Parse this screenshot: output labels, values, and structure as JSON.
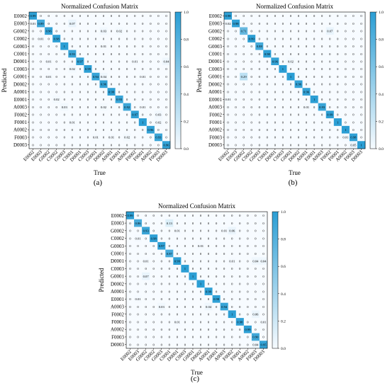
{
  "figure": {
    "panel_labels": [
      "(a)",
      "(b)",
      "(c)"
    ]
  },
  "chart_data": [
    {
      "type": "heatmap",
      "panel": "(a)",
      "title": "Normalized Confusion Matrix",
      "xlabel": "True",
      "ylabel": "Predicted",
      "labels": [
        "E0002",
        "E0003",
        "G0002",
        "C0002",
        "G0003",
        "C0001",
        "D0001",
        "C0003",
        "G0001",
        "D0002",
        "A0001",
        "E0001",
        "A0003",
        "F0002",
        "F0001",
        "A0002",
        "F0003",
        "D0003"
      ],
      "colorbar": {
        "min": 0.0,
        "max": 1.0,
        "ticks": [
          "0.0",
          "0.2",
          "0.4",
          "0.6",
          "0.8",
          "1.0"
        ]
      },
      "color_low": "#f7fbff",
      "color_high": "#2b9ed4",
      "matrix": [
        [
          "0.99",
          "0",
          "0",
          "0",
          "0",
          "0",
          "0",
          "0",
          "0",
          "0",
          "0",
          "0",
          "0",
          "0",
          "0",
          "0",
          "0",
          "0"
        ],
        [
          "0.01",
          "0.89",
          "0",
          "0",
          "0",
          "0.07",
          "0",
          "0",
          "0",
          "0",
          "0",
          "0",
          "0",
          "0",
          "0",
          "0",
          "0",
          "0"
        ],
        [
          "0",
          "0",
          "0.96",
          "0",
          "0",
          "0",
          "0",
          "0",
          "0",
          "0.03",
          "0",
          "0.02",
          "0",
          "0",
          "0",
          "0",
          "0",
          "0"
        ],
        [
          "0",
          "0.01",
          "0",
          "0.98",
          "0",
          "0",
          "0",
          "0",
          "0",
          "0",
          "0",
          "0",
          "0",
          "0",
          "0",
          "0",
          "0",
          "0"
        ],
        [
          "0",
          "0",
          "0",
          "0",
          "1",
          "0",
          "0",
          "0",
          "0",
          "0.01",
          "0",
          "0",
          "0",
          "0",
          "0",
          "0",
          "0",
          "0"
        ],
        [
          "0",
          "0",
          "0",
          "0",
          "0",
          "0.93",
          "0",
          "0",
          "0",
          "0",
          "0",
          "0",
          "0",
          "0",
          "0",
          "0",
          "0",
          "0"
        ],
        [
          "0",
          "0",
          "0.01",
          "0",
          "0",
          "0",
          "0.97",
          "0",
          "0",
          "0",
          "0",
          "0",
          "0",
          "0.01",
          "0",
          "0",
          "0",
          "0.04"
        ],
        [
          "0",
          "0",
          "0",
          "0",
          "0",
          "0.02",
          "0",
          "0.99",
          "0",
          "0",
          "0",
          "0",
          "0",
          "0",
          "0",
          "0",
          "0",
          "0"
        ],
        [
          "0",
          "0",
          "0.01",
          "0",
          "0",
          "0",
          "0",
          "0",
          "0.94",
          "0.04",
          "0",
          "0",
          "0",
          "0",
          "0.01",
          "0",
          "0",
          "0"
        ],
        [
          "0",
          "0",
          "0",
          "0",
          "0",
          "0",
          "0",
          "0",
          "0",
          "0.96",
          "0",
          "0",
          "0",
          "0",
          "0",
          "0",
          "0",
          "0"
        ],
        [
          "0",
          "0",
          "0",
          "0",
          "0",
          "0",
          "0",
          "0",
          "0",
          "0",
          "0.99",
          "0",
          "0",
          "0",
          "0",
          "0",
          "0",
          "0"
        ],
        [
          "0",
          "0",
          "0",
          "0.02",
          "0",
          "0",
          "0",
          "0",
          "0",
          "0",
          "0",
          "0.93",
          "0",
          "0",
          "0",
          "0",
          "0",
          "0"
        ],
        [
          "0",
          "0",
          "0",
          "0",
          "0.03",
          "0",
          "0",
          "0",
          "0",
          "0.02",
          "0",
          "0",
          "0.92",
          "0",
          "0.01",
          "0",
          "0",
          "0"
        ],
        [
          "0",
          "0",
          "0",
          "0",
          "0",
          "0",
          "0",
          "0",
          "0",
          "0",
          "0",
          "0",
          "0",
          "0.97",
          "0",
          "0",
          "0.03",
          "0"
        ],
        [
          "0",
          "0",
          "0",
          "0",
          "0",
          "0.01",
          "0",
          "0",
          "0",
          "0",
          "0",
          "0",
          "0",
          "0",
          "1",
          "0",
          "0.02",
          "0"
        ],
        [
          "0",
          "0",
          "0",
          "0",
          "0",
          "0",
          "0",
          "0",
          "0",
          "0",
          "0",
          "0",
          "0",
          "0",
          "0",
          "0.96",
          "0",
          "0"
        ],
        [
          "0",
          "0",
          "0",
          "0",
          "0",
          "0",
          "0",
          "0",
          "0.01",
          "0",
          "0.01",
          "0",
          "0.02",
          "0",
          "0",
          "0",
          "0.93",
          "0"
        ],
        [
          "0",
          "0",
          "0",
          "0",
          "0",
          "0",
          "0",
          "0",
          "0",
          "0",
          "0",
          "0",
          "0",
          "0",
          "0",
          "0",
          "0",
          "0.96"
        ]
      ]
    },
    {
      "type": "heatmap",
      "panel": "(b)",
      "title": "Normalized Confusion Matrix",
      "xlabel": "True",
      "ylabel": "Predicted",
      "labels": [
        "E0002",
        "E0003",
        "G0002",
        "C0002",
        "G0003",
        "C0001",
        "D0001",
        "C0003",
        "G0001",
        "D0002",
        "A0001",
        "E0001",
        "A0003",
        "F0002",
        "F0001",
        "A0002",
        "F0003",
        "D0003"
      ],
      "colorbar": {
        "min": 0.0,
        "max": 1.0,
        "ticks": [
          "0.0",
          "0.2",
          "0.4",
          "0.6",
          "0.8",
          "1.0"
        ]
      },
      "color_low": "#f7fbff",
      "color_high": "#2b9ed4",
      "matrix": [
        [
          "0.98",
          "0",
          "0",
          "0",
          "0",
          "0",
          "0",
          "0",
          "0",
          "0",
          "0",
          "0",
          "0",
          "0",
          "0",
          "0",
          "0",
          "0"
        ],
        [
          "0.02",
          "0.98",
          "0",
          "0",
          "0",
          "0",
          "0",
          "0",
          "0",
          "0",
          "0",
          "0",
          "0",
          "0",
          "0",
          "0",
          "0",
          "0"
        ],
        [
          "0",
          "0",
          "0.71",
          "0",
          "0",
          "0",
          "0",
          "0",
          "0",
          "0",
          "0",
          "0",
          "0",
          "0.07",
          "0",
          "0",
          "0",
          "0"
        ],
        [
          "0",
          "0",
          "0",
          "0.99",
          "0",
          "0",
          "0",
          "0",
          "0",
          "0",
          "0",
          "0",
          "0",
          "0",
          "0",
          "0",
          "0",
          "0"
        ],
        [
          "0",
          "0",
          "0",
          "0",
          "0.88",
          "0",
          "0",
          "0",
          "0",
          "0",
          "0",
          "0",
          "0",
          "0",
          "0",
          "0",
          "0",
          "0"
        ],
        [
          "0",
          "0",
          "0",
          "0",
          "0",
          "0.98",
          "0",
          "0",
          "0",
          "0",
          "0",
          "0",
          "0",
          "0",
          "0",
          "0",
          "0",
          "0"
        ],
        [
          "0",
          "0",
          "0",
          "0",
          "0",
          "0",
          "0.96",
          "0",
          "0.02",
          "0",
          "0",
          "0",
          "0",
          "0",
          "0",
          "0",
          "0",
          "0"
        ],
        [
          "0",
          "0",
          "0",
          "0",
          "0",
          "0",
          "0",
          "1",
          "0",
          "0",
          "0",
          "0",
          "0",
          "0",
          "0",
          "0",
          "0",
          "0"
        ],
        [
          "0",
          "0",
          "0.29",
          "0",
          "0",
          "0",
          "0",
          "0",
          "1",
          "0",
          "0",
          "0",
          "0",
          "0",
          "0",
          "0",
          "0",
          "0"
        ],
        [
          "0",
          "0",
          "0",
          "0",
          "0",
          "0",
          "0",
          "0",
          "0",
          "0.96",
          "0",
          "0",
          "0",
          "0",
          "0",
          "0",
          "0",
          "0"
        ],
        [
          "0",
          "0",
          "0",
          "0",
          "0",
          "0",
          "0",
          "0",
          "0",
          "0",
          "0.96",
          "0",
          "0",
          "0",
          "0",
          "0",
          "0",
          "0"
        ],
        [
          "0.01",
          "0",
          "0",
          "0",
          "0",
          "0",
          "0",
          "0",
          "0",
          "0",
          "0",
          "1",
          "0",
          "0",
          "0",
          "0",
          "0",
          "0"
        ],
        [
          "0",
          "0",
          "0",
          "0",
          "0",
          "0",
          "0",
          "0",
          "0",
          "0",
          "0.01",
          "0",
          "0.93",
          "0",
          "0",
          "0",
          "0",
          "0"
        ],
        [
          "0",
          "0",
          "0",
          "0",
          "0",
          "0",
          "0",
          "0",
          "0",
          "0",
          "0",
          "0",
          "0",
          "0.99",
          "0",
          "0",
          "0",
          "0"
        ],
        [
          "0",
          "0",
          "0",
          "0",
          "0",
          "0",
          "0",
          "0",
          "0",
          "0",
          "0",
          "0",
          "0",
          "0",
          "1",
          "0",
          "0",
          "0"
        ],
        [
          "0",
          "0",
          "0",
          "0",
          "0",
          "0",
          "0",
          "0",
          "0",
          "0",
          "0",
          "0",
          "0",
          "0",
          "0",
          "1",
          "0",
          "0"
        ],
        [
          "0",
          "0",
          "0",
          "0",
          "0",
          "0",
          "0",
          "0",
          "0",
          "0",
          "0",
          "0",
          "0",
          "0",
          "0",
          "0.01",
          "0.98",
          "0"
        ],
        [
          "0",
          "0",
          "0",
          "0",
          "0",
          "0",
          "0",
          "0",
          "0",
          "0",
          "0",
          "0",
          "0",
          "0",
          "0",
          "0",
          "0.05",
          "1"
        ]
      ]
    },
    {
      "type": "heatmap",
      "panel": "(c)",
      "title": "Normalized Confusion Matrix",
      "xlabel": "True",
      "ylabel": "Predicted",
      "labels": [
        "E0002",
        "E0003",
        "G0002",
        "C0002",
        "G0003",
        "C0001",
        "D0001",
        "C0003",
        "G0001",
        "D0002",
        "A0001",
        "E0001",
        "A0003",
        "F0002",
        "F0001",
        "A0002",
        "F0003",
        "D0003"
      ],
      "colorbar": {
        "min": 0.0,
        "max": 1.0,
        "ticks": [
          "0.0",
          "0.2",
          "0.4",
          "0.6",
          "0.8",
          "1.0"
        ]
      },
      "color_low": "#f7fbff",
      "color_high": "#2b9ed4",
      "matrix": [
        [
          "0.99",
          "0",
          "0",
          "0",
          "0",
          "0",
          "0",
          "0",
          "0",
          "0",
          "0",
          "0",
          "0",
          "0",
          "0",
          "0",
          "0",
          "0"
        ],
        [
          "0",
          "0.86",
          "0",
          "0",
          "0",
          "0.13",
          "0",
          "0",
          "0",
          "0",
          "0",
          "0",
          "0",
          "0",
          "0",
          "0",
          "0",
          "0"
        ],
        [
          "0",
          "0",
          "0.93",
          "0",
          "0",
          "0",
          "0.01",
          "0",
          "0",
          "0",
          "0",
          "0",
          "0.01",
          "0.06",
          "0",
          "0",
          "0",
          "0"
        ],
        [
          "0",
          "0.01",
          "0",
          "0.98",
          "0",
          "0",
          "0",
          "0",
          "0",
          "0",
          "0",
          "0",
          "0",
          "0",
          "0",
          "0",
          "0",
          "0"
        ],
        [
          "0",
          "0",
          "0",
          "0",
          "0.97",
          "0",
          "0",
          "0",
          "0",
          "0.01",
          "0",
          "0",
          "0",
          "0",
          "0",
          "0",
          "0",
          "0"
        ],
        [
          "0",
          "0",
          "0",
          "0",
          "0",
          "0.87",
          "0",
          "0",
          "0",
          "0",
          "0",
          "0",
          "0",
          "0",
          "0",
          "0",
          "0",
          "0"
        ],
        [
          "0",
          "0",
          "0.01",
          "0",
          "0",
          "0",
          "0.99",
          "0",
          "0",
          "0",
          "0",
          "0",
          "0",
          "0.01",
          "0",
          "0",
          "0.04",
          "0.04"
        ],
        [
          "0",
          "0",
          "0",
          "0",
          "0",
          "0",
          "0",
          "1",
          "0",
          "0",
          "0",
          "0",
          "0",
          "0",
          "0",
          "0",
          "0",
          "0"
        ],
        [
          "0",
          "0",
          "0.07",
          "0",
          "0",
          "0",
          "0",
          "0",
          "1",
          "0",
          "0",
          "0",
          "0",
          "0",
          "0",
          "0",
          "0",
          "0"
        ],
        [
          "0",
          "0",
          "0",
          "0",
          "0",
          "0",
          "0",
          "0",
          "0",
          "1",
          "0",
          "0",
          "0",
          "0",
          "0",
          "0",
          "0",
          "0"
        ],
        [
          "0",
          "0",
          "0",
          "0",
          "0",
          "0",
          "0",
          "0",
          "0",
          "0",
          "0.99",
          "0",
          "0",
          "0",
          "0",
          "0",
          "0",
          "0"
        ],
        [
          "0",
          "0.01",
          "0",
          "0",
          "0",
          "0",
          "0",
          "0",
          "0",
          "0",
          "0",
          "0.98",
          "0",
          "0",
          "0",
          "0",
          "0",
          "0"
        ],
        [
          "0",
          "0",
          "0",
          "0",
          "0.03",
          "0",
          "0",
          "0",
          "0",
          "0",
          "0.04",
          "0",
          "0.94",
          "0",
          "0",
          "0",
          "0",
          "0"
        ],
        [
          "0",
          "0",
          "0",
          "0",
          "0",
          "0",
          "0",
          "0",
          "0",
          "0",
          "0",
          "0",
          "0",
          "1",
          "0",
          "0",
          "0.06",
          "0"
        ],
        [
          "0",
          "0",
          "0",
          "0",
          "0",
          "0",
          "0.01",
          "0",
          "0",
          "0",
          "0",
          "0",
          "0",
          "0",
          "0.98",
          "0",
          "0",
          "0.01"
        ],
        [
          "0",
          "0",
          "0",
          "0",
          "0",
          "0",
          "0",
          "0",
          "0",
          "0",
          "0",
          "0",
          "0",
          "0",
          "0",
          "0.99",
          "0",
          "0"
        ],
        [
          "0",
          "0",
          "0",
          "0",
          "0",
          "0",
          "0",
          "0",
          "0",
          "0",
          "0",
          "0",
          "0",
          "0",
          "0",
          "0",
          "0.90",
          "0"
        ],
        [
          "0",
          "0",
          "0",
          "0",
          "0",
          "0",
          "0",
          "0",
          "0",
          "0",
          "0",
          "0",
          "0",
          "0",
          "0",
          "0",
          "0.04",
          "0.95"
        ]
      ]
    }
  ]
}
